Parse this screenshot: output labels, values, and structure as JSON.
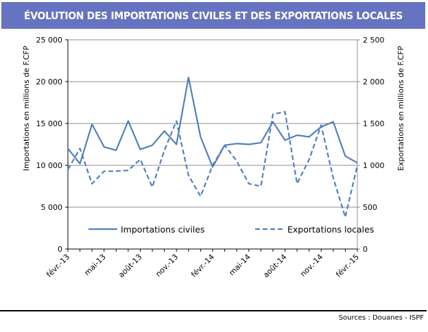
{
  "title": "ÉVOLUTION DES IMPORTATIONS CIVILES ET DES EXPORTATIONS LOCALES",
  "source": "Sources : Douanes - ISPF",
  "chart_data": {
    "type": "line",
    "title": "ÉVOLUTION DES IMPORTATIONS CIVILES ET DES EXPORTATIONS LOCALES",
    "ylabel": "Importations en millions de F.CFP",
    "y2label": "Exportations en millions de F.CFP",
    "ylim": [
      0,
      25000
    ],
    "y2lim": [
      0,
      2500
    ],
    "yticks": [
      "0",
      "5 000",
      "10 000",
      "15 000",
      "20 000",
      "25 000"
    ],
    "y2ticks": [
      "0",
      "500",
      "1 000",
      "1 500",
      "2 000",
      "2 500"
    ],
    "x": [
      "févr.-13",
      "mars-13",
      "avr.-13",
      "mai-13",
      "juin-13",
      "juil.-13",
      "août-13",
      "sept.-13",
      "oct.-13",
      "nov.-13",
      "déc.-13",
      "janv.-14",
      "févr.-14",
      "mars-14",
      "avr.-14",
      "mai-14",
      "juin-14",
      "juil.-14",
      "août-14",
      "sept.-14",
      "oct.-14",
      "nov.-14",
      "déc.-14",
      "janv.-15",
      "févr.-15"
    ],
    "xtick_labels": [
      "févr.-13",
      "mai-13",
      "août-13",
      "nov.-13",
      "févr.-14",
      "mai-14",
      "août-14",
      "nov.-14",
      "févr.-15"
    ],
    "grid": "horizontal",
    "legend": "bottom-inside",
    "series": [
      {
        "name": "Importations civiles",
        "axis": "left",
        "style": "solid",
        "color": "#4f7fbf",
        "values": [
          12000,
          10200,
          14900,
          12200,
          11800,
          15300,
          11900,
          12400,
          14100,
          12500,
          20500,
          13400,
          9800,
          12400,
          12600,
          12500,
          12700,
          15200,
          13000,
          13600,
          13400,
          14600,
          15200,
          11100,
          10300
        ]
      },
      {
        "name": "Exportations locales",
        "axis": "right",
        "style": "dashed",
        "color": "#4f7fbf",
        "values": [
          950,
          1200,
          780,
          930,
          930,
          940,
          1070,
          740,
          1180,
          1530,
          880,
          630,
          1000,
          1240,
          1050,
          780,
          750,
          1610,
          1640,
          780,
          1070,
          1480,
          850,
          380,
          1000
        ]
      }
    ]
  }
}
